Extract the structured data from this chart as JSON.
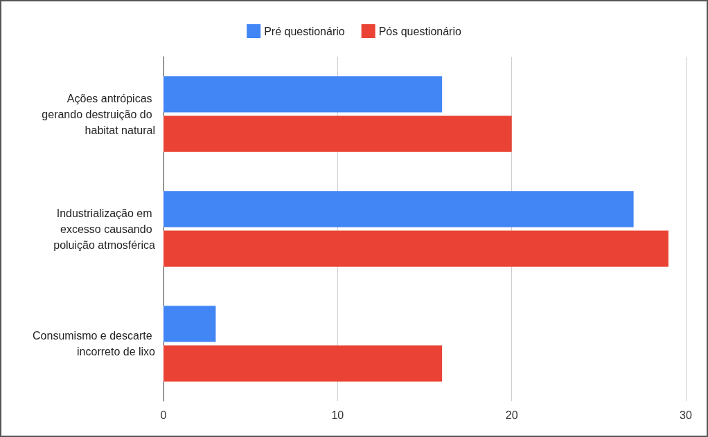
{
  "chart_data": {
    "type": "bar",
    "orientation": "horizontal",
    "categories": [
      "Ações antrópicas gerando destruição do habitat natural",
      "Industrialização em excesso causando poluição atmosférica",
      "Consumismo e descarte incorreto de lixo"
    ],
    "series": [
      {
        "name": "Pré questionário",
        "color": "#4285f4",
        "values": [
          16,
          27,
          3
        ]
      },
      {
        "name": "Pós questionário",
        "color": "#ea4335",
        "values": [
          20,
          29,
          16
        ]
      }
    ],
    "xlim": [
      0,
      30
    ],
    "xticks": [
      0,
      10,
      20,
      30
    ],
    "grid": "x",
    "legend": "top"
  }
}
